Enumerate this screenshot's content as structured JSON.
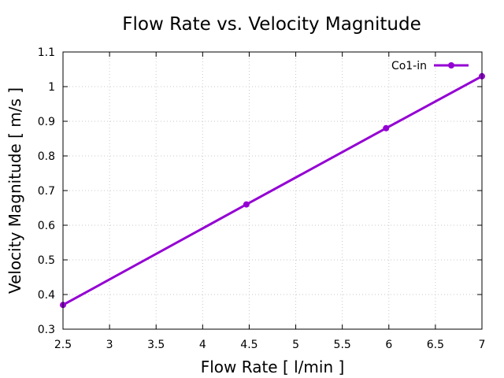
{
  "chart_data": {
    "type": "line",
    "title": "Flow Rate vs. Velocity Magnitude",
    "xlabel": "Flow Rate [ l/min ]",
    "ylabel": "Velocity Magnitude [ m/s ]",
    "xlim": [
      2.5,
      7
    ],
    "ylim": [
      0.3,
      1.1
    ],
    "xticks": [
      "2.5",
      "3",
      "3.5",
      "4",
      "4.5",
      "5",
      "5.5",
      "6",
      "6.5",
      "7"
    ],
    "yticks": [
      "0.3",
      "0.4",
      "0.5",
      "0.6",
      "0.7",
      "0.8",
      "0.9",
      "1",
      "1.1"
    ],
    "grid": true,
    "legend_position": "top-right",
    "series": [
      {
        "name": "Co1-in",
        "color": "#9400d3",
        "marker": "circle",
        "x": [
          2.5,
          4.47,
          5.97,
          7.0
        ],
        "y": [
          0.37,
          0.66,
          0.88,
          1.03
        ]
      }
    ]
  }
}
